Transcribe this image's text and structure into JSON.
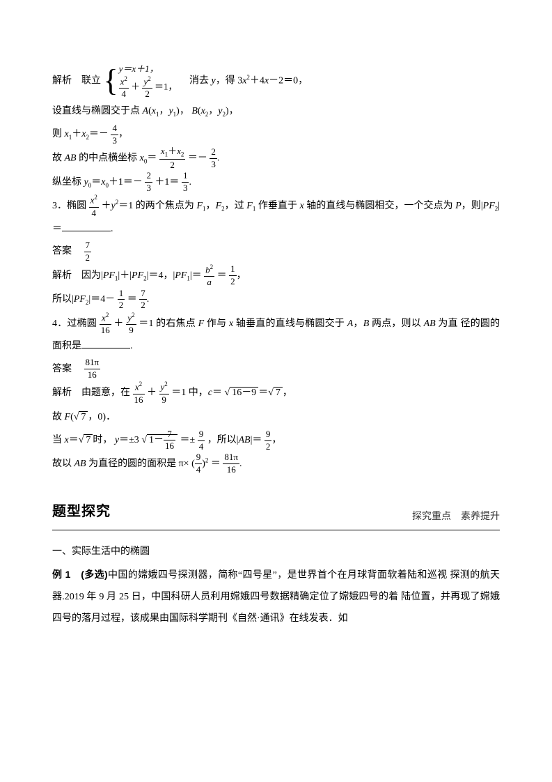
{
  "l1a": "解析　联立",
  "sys1": "y＝x＋1，",
  "sys2a_num": "x",
  "sys2a_exp": "2",
  "sys2a_den": "4",
  "sys2p": "＋",
  "sys2b_num": "y",
  "sys2b_exp": "2",
  "sys2b_den": "2",
  "sys2_eq": "＝1，",
  "l1b": "　消去 ",
  "l1y": "y",
  "l1c": "，得",
  "l1d": "3",
  "l1x": "x",
  "l1e": "＋4",
  "l1f": "－2＝0，",
  "l2a": "设直线与椭圆交于点 ",
  "l2A": "A",
  "l2p1": "(",
  "l2x": "x",
  "l2s1": "1",
  "l2c": "，",
  "l2yv": "y",
  "l2p2": ")，",
  "l2B": "B",
  "l2s2": "2",
  "l3a": "则 ",
  "l3x": "x",
  "l3b": "＋",
  "l3c": "＝－",
  "l3num": "4",
  "l3den": "3",
  "l3d": "，",
  "l4a": "故 ",
  "l4AB": "AB",
  "l4b": " 的中点横坐标 ",
  "l4x0": "x",
  "l4s0": "0",
  "l4eq": "＝",
  "l4fnum_a": "x",
  "l4fnum_s1": "1",
  "l4fnum_p": "＋",
  "l4fnum_s2": "2",
  "l4fden": "2",
  "l4c": "＝－",
  "l4gnum": "2",
  "l4gden": "3",
  "l4d": ".",
  "l5a": "纵坐标 ",
  "l5y": "y",
  "l5s0": "0",
  "l5eq": "＝",
  "l5x": "x",
  "l5b": "＋1＝－",
  "l5f1n": "2",
  "l5f1d": "3",
  "l5c": "＋1＝",
  "l5f2n": "1",
  "l5f2d": "3",
  "l5d": ".",
  "q3a": "3．椭圆",
  "q3f1n": "x",
  "q3f1e": "2",
  "q3f1d": "4",
  "q3p": "＋",
  "q3y": "y",
  "q3ye": "2",
  "q3b": "＝1 的两个焦点为 ",
  "q3F": "F",
  "q3s1": "1",
  "q3c": "，",
  "q3s2": "2",
  "q3d": "，过 ",
  "q3e": " 作垂直于 ",
  "q3xx": "x",
  "q3f": " 轴的直线与椭圆相交，一个交点为",
  "q3g": "P",
  "q3h": "，则|",
  "q3PF": "PF",
  "q3i": "|＝",
  "q3blankw": "70",
  "q3j": ".",
  "a3a": "答案　",
  "a3n": "7",
  "a3d": "2",
  "s3a": "解析　因为|",
  "s3PF": "PF",
  "s3s1": "1",
  "s3b": "|＋|",
  "s3s2": "2",
  "s3c": "|＝4，|",
  "s3d": "|＝",
  "s3f1n_a": "b",
  "s3f1n_e": "2",
  "s3f1d": "a",
  "s3eq": "＝",
  "s3f2n": "1",
  "s3f2d": "2",
  "s3e": "，",
  "s3l2a": "所以|",
  "s3l2b": "|＝4－",
  "s3l2f1n": "1",
  "s3l2f1d": "2",
  "s3l2c": "＝",
  "s3l2f2n": "7",
  "s3l2f2d": "2",
  "s3l2d": ".",
  "q4a": "4．过椭圆",
  "q4f1n": "x",
  "q4f1e": "2",
  "q4f1d": "16",
  "q4p": "＋",
  "q4f2n": "y",
  "q4f2e": "2",
  "q4f2d": "9",
  "q4b": "＝1 的右焦点 ",
  "q4F": "F",
  "q4c": " 作与 ",
  "q4x": "x",
  "q4d": " 轴垂直的直线与椭圆交于 ",
  "q4A": "A",
  "q4e": "，",
  "q4B": "B",
  "q4f": " 两点，则以 ",
  "q4AB": "AB",
  "q4g": " 为直",
  "q4l2": "径的圆的面积是",
  "q4blankw": "70",
  "q4h": ".",
  "a4a": "答案　",
  "a4n": "81π",
  "a4d": "16",
  "s4a": "解析　由题意，在",
  "s4eq": "＝1 中，",
  "s4c": "c",
  "s4b": "＝",
  "s4r1": "16－9",
  "s4d": "＝",
  "s4r2": "7",
  "s4e": "，",
  "s4l2a": "故 ",
  "s4F": "F",
  "s4l2b": "(",
  "s4l2c": "，0)．",
  "s4l3a": "当 ",
  "s4x": "x",
  "s4l3b": "＝",
  "s4l3c": "时，",
  "s4y": "y",
  "s4l3d": "＝±3",
  "s4f1n": "1－",
  "s4f1in": "7",
  "s4f1id": "16",
  "s4l3e": "＝±",
  "s4f2n": "9",
  "s4f2d": "4",
  "s4l3f": "，所以|",
  "s4AB": "AB",
  "s4l3g": "|＝",
  "s4f3n": "9",
  "s4f3d": "2",
  "s4l3h": "，",
  "s4l4a": "故以 ",
  "s4l4b": " 为直径的圆的面积是 π×",
  "s4pn": "9",
  "s4pd": "4",
  "s4pe": "2",
  "s4l4c": "＝",
  "s4rn": "81π",
  "s4rd": "16",
  "s4l4d": ".",
  "sec_title": "题型探究",
  "sec_sub": "探究重点　素养提升",
  "h1": "一、实际生活中的椭圆",
  "ex1a": "例 1　",
  "ex1b": "(多选)",
  "ex1c": "中国的嫦娥四号探测器，简称“四号星”，是世界首个在月球背面软着陆和巡视",
  "ex1l2": "探测的航天器.2019 年 9 月 25 日，中国科研人员利用嫦娥四号数据精确定位了嫦娥四号的着",
  "ex1l3": "陆位置，并再现了嫦娥四号的落月过程，该成果由国际科学期刊《自然·通讯》在线发表．如"
}
